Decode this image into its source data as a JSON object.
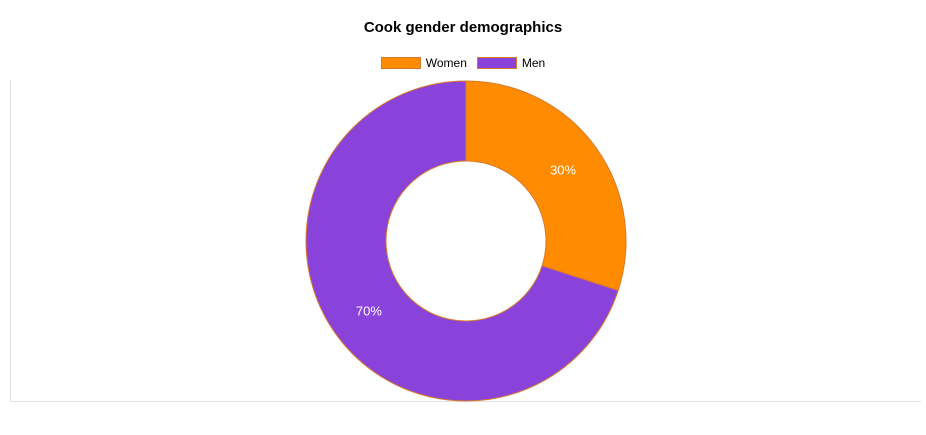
{
  "chart_data": {
    "type": "pie",
    "variant": "donut",
    "title": "Cook gender demographics",
    "legend_position": "top",
    "categories": [
      "Women",
      "Men"
    ],
    "values": [
      30,
      70
    ],
    "value_labels": [
      "30%",
      "70%"
    ],
    "colors": [
      "#ff8c00",
      "#8a43da"
    ],
    "border_color": "#d97a2a"
  }
}
